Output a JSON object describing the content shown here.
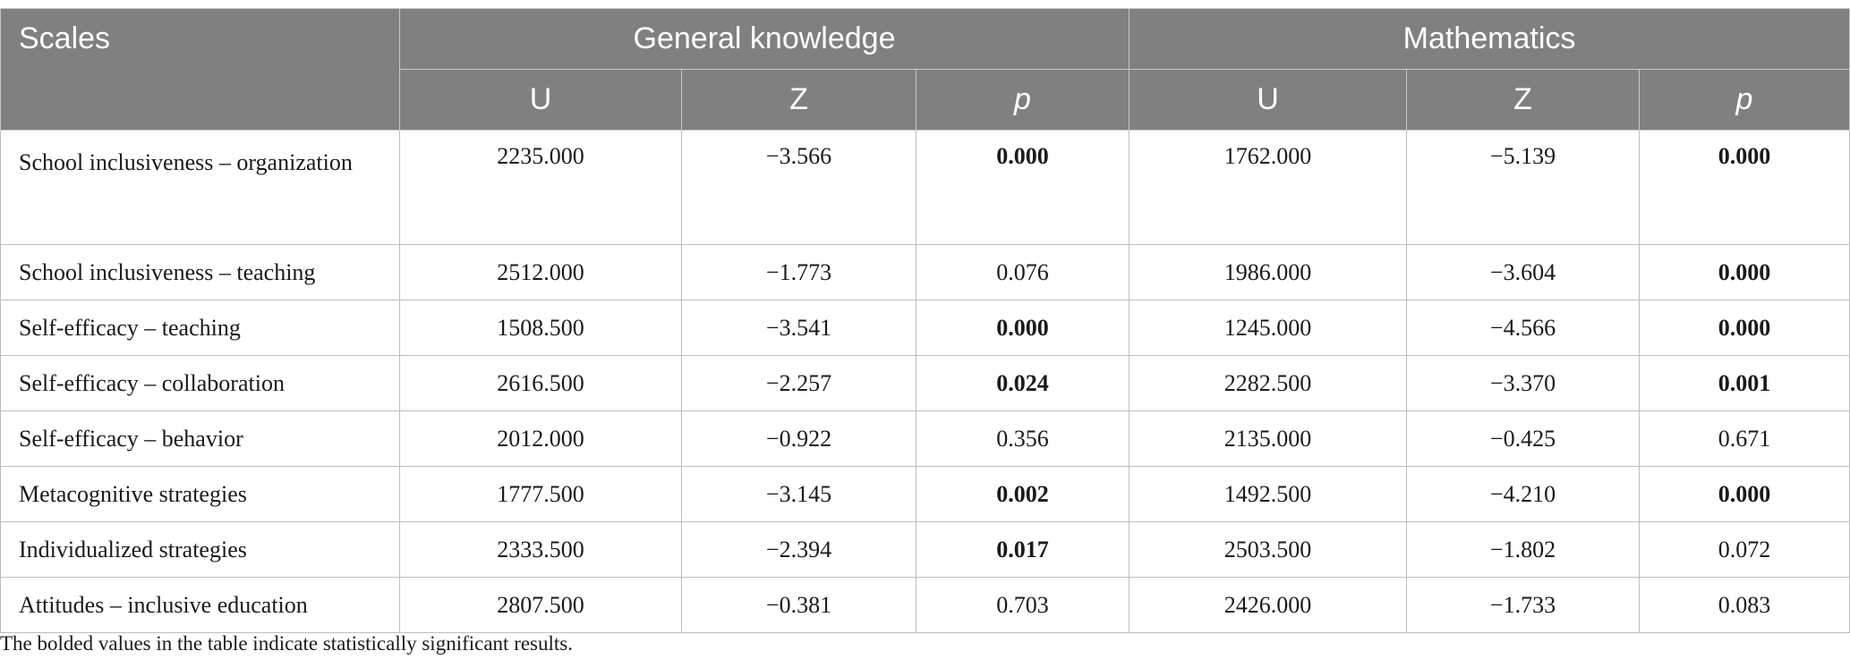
{
  "table": {
    "header": {
      "scales": "Scales",
      "groups": [
        "General knowledge",
        "Mathematics"
      ],
      "sub_columns": [
        "U",
        "Z",
        "p",
        "U",
        "Z",
        "p"
      ]
    },
    "rows": [
      {
        "scale": "School inclusiveness – organization",
        "gk_u": "2235.000",
        "gk_z": "−3.566",
        "gk_p": "0.000",
        "gk_p_bold": true,
        "m_u": "1762.000",
        "m_z": "−5.139",
        "m_p": "0.000",
        "m_p_bold": true
      },
      {
        "scale": "School inclusiveness – teaching",
        "gk_u": "2512.000",
        "gk_z": "−1.773",
        "gk_p": "0.076",
        "gk_p_bold": false,
        "m_u": "1986.000",
        "m_z": "−3.604",
        "m_p": "0.000",
        "m_p_bold": true
      },
      {
        "scale": "Self-efficacy – teaching",
        "gk_u": "1508.500",
        "gk_z": "−3.541",
        "gk_p": "0.000",
        "gk_p_bold": true,
        "m_u": "1245.000",
        "m_z": "−4.566",
        "m_p": "0.000",
        "m_p_bold": true
      },
      {
        "scale": "Self-efficacy – collaboration",
        "gk_u": "2616.500",
        "gk_z": "−2.257",
        "gk_p": "0.024",
        "gk_p_bold": true,
        "m_u": "2282.500",
        "m_z": "−3.370",
        "m_p": "0.001",
        "m_p_bold": true
      },
      {
        "scale": "Self-efficacy – behavior",
        "gk_u": "2012.000",
        "gk_z": "−0.922",
        "gk_p": "0.356",
        "gk_p_bold": false,
        "m_u": "2135.000",
        "m_z": "−0.425",
        "m_p": "0.671",
        "m_p_bold": false
      },
      {
        "scale": "Metacognitive strategies",
        "gk_u": "1777.500",
        "gk_z": "−3.145",
        "gk_p": "0.002",
        "gk_p_bold": true,
        "m_u": "1492.500",
        "m_z": "−4.210",
        "m_p": "0.000",
        "m_p_bold": true
      },
      {
        "scale": "Individualized strategies",
        "gk_u": "2333.500",
        "gk_z": "−2.394",
        "gk_p": "0.017",
        "gk_p_bold": true,
        "m_u": "2503.500",
        "m_z": "−1.802",
        "m_p": "0.072",
        "m_p_bold": false
      },
      {
        "scale": "Attitudes – inclusive education",
        "gk_u": "2807.500",
        "gk_z": "−0.381",
        "gk_p": "0.703",
        "gk_p_bold": false,
        "m_u": "2426.000",
        "m_z": "−1.733",
        "m_p": "0.083",
        "m_p_bold": false
      }
    ],
    "footnote": "The bolded values in the table indicate statistically significant results."
  },
  "colors": {
    "header_bg": "#808080",
    "header_text": "#ffffff",
    "grid_line": "#bdbdbd"
  }
}
